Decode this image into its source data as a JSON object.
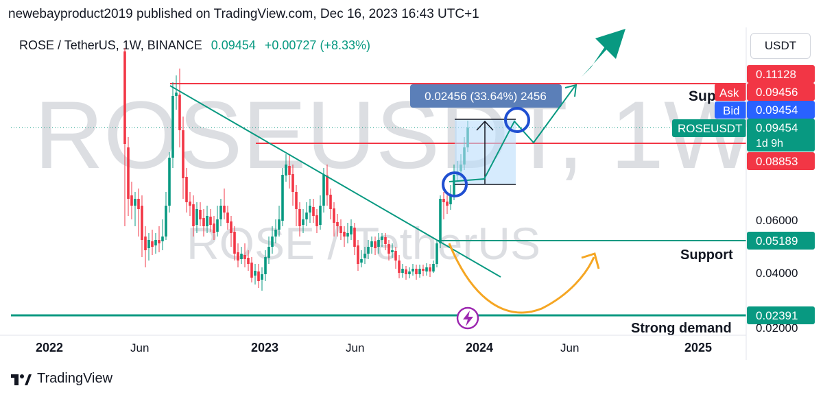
{
  "publisher_line": "newebayproduct2019 published on TradingView.com, Dec 16, 2023 16:43 UTC+1",
  "symbol": {
    "name": "ROSE / TetherUS, 1W, BINANCE",
    "price": "0.09454",
    "change": "+0.00727 (+8.33%)"
  },
  "currency_button": "USDT",
  "brand": "TradingView",
  "watermark": {
    "main": "ROSEUSDT, 1W",
    "sub": "ROSE / TetherUS"
  },
  "colors": {
    "up": "#089981",
    "down": "#f23645",
    "measure_fill": "#bbdefb",
    "measure_label": "#5b7fb8",
    "arrow_orange": "#f5a623",
    "circle_blue": "#1f4fd1",
    "bid": "#2962ff"
  },
  "chart_data": {
    "type": "candlestick",
    "title": "ROSE / TetherUS, 1W, BINANCE",
    "x_ticks": [
      "2022",
      "Jun",
      "2023",
      "Jun",
      "2024",
      "Jun",
      "2025"
    ],
    "y_ticks": [
      "0.06000",
      "0.04000",
      "0.02000"
    ],
    "y_scale": "log",
    "price_tags": [
      {
        "label": "",
        "value": "0.11128",
        "color": "#f23645"
      },
      {
        "label": "Ask",
        "value": "0.09456",
        "color": "#f23645"
      },
      {
        "label": "Bid",
        "value": "0.09454",
        "color": "#2962ff"
      },
      {
        "label": "ROSEUSDT",
        "value": "0.09454",
        "sub": "1d 9h",
        "color": "#089981"
      },
      {
        "label": "",
        "value": "0.08853",
        "color": "#f23645"
      },
      {
        "label": "",
        "value": "0.05189",
        "color": "#089981"
      },
      {
        "label": "",
        "value": "0.02391",
        "color": "#089981"
      }
    ],
    "horizontal_levels": [
      {
        "price": 0.11128,
        "color": "#f23645",
        "label": "Sup"
      },
      {
        "price": 0.08853,
        "color": "#f23645",
        "label": ""
      },
      {
        "price": 0.05189,
        "color": "#089981",
        "label": "Support"
      },
      {
        "price": 0.02391,
        "color": "#089981",
        "label": "Strong demand"
      }
    ],
    "measure_label": "0.02456 (33.64%) 2456",
    "annotations": [
      "Sup",
      "Support",
      "Strong demand"
    ],
    "legend": "none",
    "grid": false
  }
}
